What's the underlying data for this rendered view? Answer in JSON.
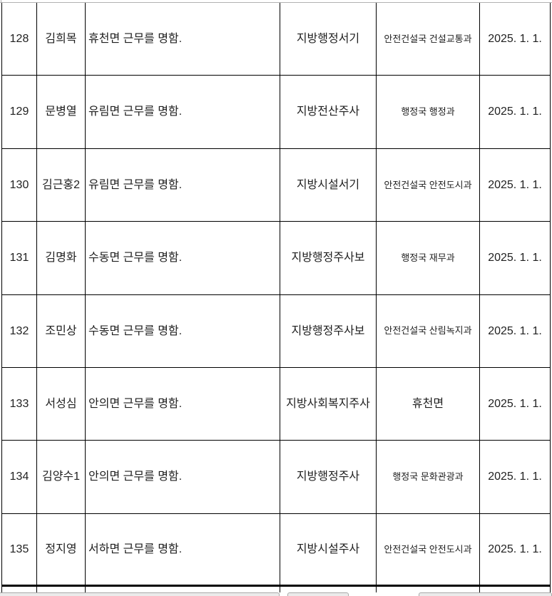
{
  "document": {
    "kind": "personnel-order-table",
    "rows": [
      {
        "no": "128",
        "name": "김희목",
        "order": "휴천면 근무를 명함.",
        "grade": "지방행정서기",
        "dept": "안전건설국 건설교통과",
        "date": "2025. 1. 1."
      },
      {
        "no": "129",
        "name": "문병열",
        "order": "유림면 근무를 명함.",
        "grade": "지방전산주사",
        "dept": "행정국 행정과",
        "date": "2025. 1. 1."
      },
      {
        "no": "130",
        "name": "김근홍2",
        "order": "유림면 근무를 명함.",
        "grade": "지방시설서기",
        "dept": "안전건설국 안전도시과",
        "date": "2025. 1. 1."
      },
      {
        "no": "131",
        "name": "김명화",
        "order": "수동면 근무를 명함.",
        "grade": "지방행정주사보",
        "dept": "행정국 재무과",
        "date": "2025. 1. 1."
      },
      {
        "no": "132",
        "name": "조민상",
        "order": "수동면 근무를 명함.",
        "grade": "지방행정주사보",
        "dept": "안전건설국 산림녹지과",
        "date": "2025. 1. 1."
      },
      {
        "no": "133",
        "name": "서성심",
        "order": "안의면 근무를 명함.",
        "grade": "지방사회복지주사",
        "dept": "휴천면",
        "date": "2025. 1. 1."
      },
      {
        "no": "134",
        "name": "김양수1",
        "order": "안의면 근무를 명함.",
        "grade": "지방행정주사",
        "dept": "행정국 문화관광과",
        "date": "2025. 1. 1."
      },
      {
        "no": "135",
        "name": "정지영",
        "order": "서하면 근무를 명함.",
        "grade": "지방시설주사",
        "dept": "안전건설국 안전도시과",
        "date": "2025. 1. 1."
      }
    ],
    "partial_next_row": ""
  },
  "colors": {
    "background": "#ffffff",
    "text": "#1f1f1f",
    "table_border": "#000000",
    "top_guide_line": "#b2b2b2",
    "cropped_fragment_fill": "#ebebeb",
    "cropped_fragment_border": "#a8a8a8"
  }
}
